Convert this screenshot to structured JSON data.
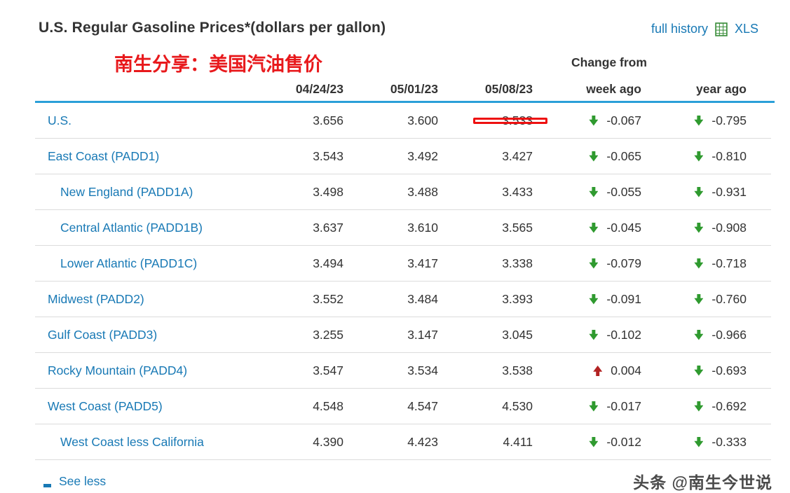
{
  "header": {
    "title": "U.S. Regular Gasoline Prices*(dollars per gallon)",
    "full_history": "full history",
    "xls": "XLS"
  },
  "annotation": "南生分享：美国汽油售价",
  "footer": {
    "see_less": "See less",
    "watermark": "头条 @南生今世说"
  },
  "colors": {
    "link": "#1879b5",
    "rule": "#2b9fd8",
    "down": "#2f9a2f",
    "up": "#b22222",
    "highlight": "#ee1111",
    "annotation": "#e8191c",
    "text": "#333333"
  },
  "chart_data": {
    "type": "table",
    "title": "U.S. Regular Gasoline Prices*(dollars per gallon)",
    "change_from_label": "Change from",
    "date_columns": [
      "04/24/23",
      "05/01/23",
      "05/08/23"
    ],
    "change_columns": [
      "week ago",
      "year ago"
    ],
    "rows": [
      {
        "label": "U.S.",
        "indent": false,
        "prices": [
          "3.656",
          "3.600",
          "3.533"
        ],
        "highlighted": true,
        "week": {
          "direction": "down",
          "value": "-0.067"
        },
        "year": {
          "direction": "down",
          "value": "-0.795"
        }
      },
      {
        "label": "East Coast (PADD1)",
        "indent": false,
        "prices": [
          "3.543",
          "3.492",
          "3.427"
        ],
        "highlighted": false,
        "week": {
          "direction": "down",
          "value": "-0.065"
        },
        "year": {
          "direction": "down",
          "value": "-0.810"
        }
      },
      {
        "label": "New England (PADD1A)",
        "indent": true,
        "prices": [
          "3.498",
          "3.488",
          "3.433"
        ],
        "highlighted": false,
        "week": {
          "direction": "down",
          "value": "-0.055"
        },
        "year": {
          "direction": "down",
          "value": "-0.931"
        }
      },
      {
        "label": "Central Atlantic (PADD1B)",
        "indent": true,
        "prices": [
          "3.637",
          "3.610",
          "3.565"
        ],
        "highlighted": false,
        "week": {
          "direction": "down",
          "value": "-0.045"
        },
        "year": {
          "direction": "down",
          "value": "-0.908"
        }
      },
      {
        "label": "Lower Atlantic (PADD1C)",
        "indent": true,
        "prices": [
          "3.494",
          "3.417",
          "3.338"
        ],
        "highlighted": false,
        "week": {
          "direction": "down",
          "value": "-0.079"
        },
        "year": {
          "direction": "down",
          "value": "-0.718"
        }
      },
      {
        "label": "Midwest (PADD2)",
        "indent": false,
        "prices": [
          "3.552",
          "3.484",
          "3.393"
        ],
        "highlighted": false,
        "week": {
          "direction": "down",
          "value": "-0.091"
        },
        "year": {
          "direction": "down",
          "value": "-0.760"
        }
      },
      {
        "label": "Gulf Coast (PADD3)",
        "indent": false,
        "prices": [
          "3.255",
          "3.147",
          "3.045"
        ],
        "highlighted": false,
        "week": {
          "direction": "down",
          "value": "-0.102"
        },
        "year": {
          "direction": "down",
          "value": "-0.966"
        }
      },
      {
        "label": "Rocky Mountain (PADD4)",
        "indent": false,
        "prices": [
          "3.547",
          "3.534",
          "3.538"
        ],
        "highlighted": false,
        "week": {
          "direction": "up",
          "value": "0.004"
        },
        "year": {
          "direction": "down",
          "value": "-0.693"
        }
      },
      {
        "label": "West Coast (PADD5)",
        "indent": false,
        "prices": [
          "4.548",
          "4.547",
          "4.530"
        ],
        "highlighted": false,
        "week": {
          "direction": "down",
          "value": "-0.017"
        },
        "year": {
          "direction": "down",
          "value": "-0.692"
        }
      },
      {
        "label": "West Coast less California",
        "indent": true,
        "prices": [
          "4.390",
          "4.423",
          "4.411"
        ],
        "highlighted": false,
        "week": {
          "direction": "down",
          "value": "-0.012"
        },
        "year": {
          "direction": "down",
          "value": "-0.333"
        }
      }
    ]
  }
}
